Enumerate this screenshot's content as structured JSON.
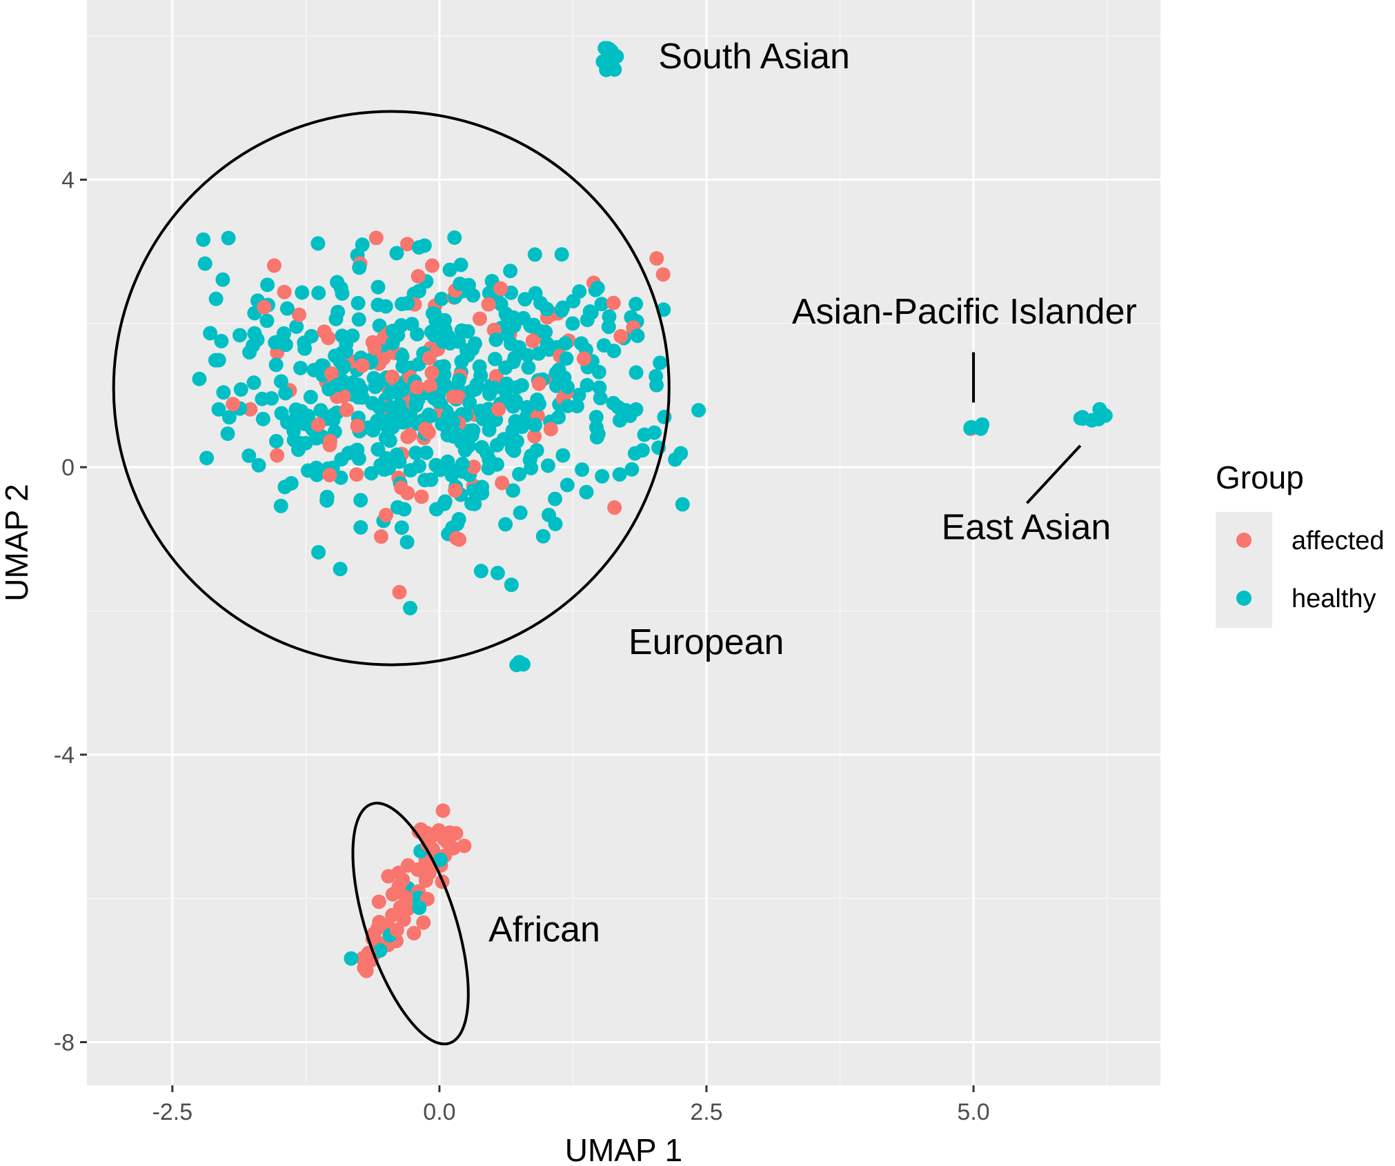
{
  "chart_data": {
    "type": "scatter",
    "xlabel": "UMAP 1",
    "ylabel": "UMAP 2",
    "xlim": [
      -3.3,
      6.75
    ],
    "ylim": [
      -8.6,
      6.5
    ],
    "xticks": [
      -2.5,
      0.0,
      2.5,
      5.0
    ],
    "xtick_labels": [
      "-2.5",
      "0.0",
      "2.5",
      "5.0"
    ],
    "yticks": [
      -8,
      -4,
      0,
      4
    ],
    "ytick_labels": [
      "-8",
      "-4",
      "0",
      "4"
    ],
    "grid": true,
    "background": "#ebebeb",
    "legend": {
      "title": "Group",
      "position": "right",
      "entries": [
        {
          "label": "affected",
          "color": "#F8766D"
        },
        {
          "label": "healthy",
          "color": "#00BFC4"
        }
      ]
    },
    "clusters": [
      {
        "label": "European",
        "center": [
          -0.45,
          1.1
        ],
        "approx_points": 620
      },
      {
        "label": "African",
        "center": [
          -0.35,
          -6.4
        ],
        "approx_points": 70
      },
      {
        "label": "South Asian",
        "center": [
          1.6,
          5.7
        ],
        "approx_points": 12
      },
      {
        "label": "Asian-Pacific Islander",
        "center": [
          5.05,
          0.55
        ],
        "approx_points": 6
      },
      {
        "label": "East Asian",
        "center": [
          6.15,
          0.75
        ],
        "approx_points": 8
      }
    ],
    "ellipses": [
      {
        "cluster": "European",
        "center": [
          -0.45,
          1.1
        ],
        "rx": 2.6,
        "ry": 3.85
      },
      {
        "cluster": "African",
        "center": [
          -0.27,
          -6.35
        ],
        "rx": 0.42,
        "ry": 1.75,
        "rotation_deg": -18
      }
    ],
    "annotations": [
      {
        "text": "South Asian",
        "x": 2.05,
        "y": 5.55
      },
      {
        "text": "Asian-Pacific Islander",
        "x": 3.3,
        "y": 2.0,
        "connector": [
          [
            5.0,
            1.6
          ],
          [
            5.0,
            0.9
          ]
        ]
      },
      {
        "text": "East Asian",
        "x": 4.7,
        "y": -1.0,
        "connector": [
          [
            5.5,
            -0.5
          ],
          [
            6.0,
            0.3
          ]
        ]
      },
      {
        "text": "European",
        "x": 1.77,
        "y": -2.6
      },
      {
        "text": "African",
        "x": 0.46,
        "y": -6.6
      }
    ]
  }
}
